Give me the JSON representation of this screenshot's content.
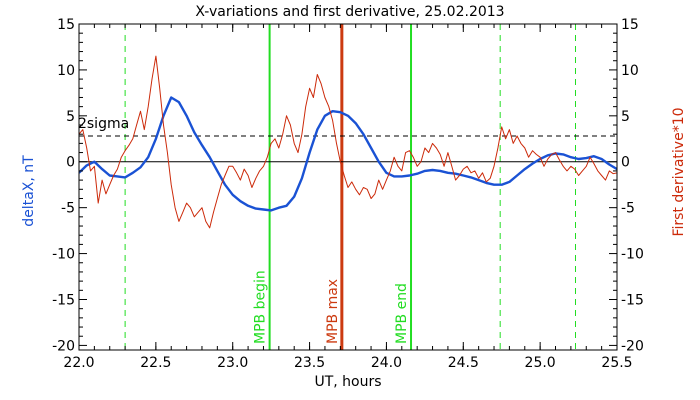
{
  "chart_data": {
    "type": "line",
    "title": "X-variations and first derivative, 25.02.2013",
    "xlabel": "UT, hours",
    "ylabel_left": "deltaX, nT",
    "ylabel_right": "First derivative*10",
    "xlim": [
      22.0,
      25.5
    ],
    "ylim": [
      -20.5,
      15
    ],
    "y2lim": [
      -20.5,
      15
    ],
    "xticks": [
      22.0,
      22.5,
      23.0,
      23.5,
      24.0,
      24.5,
      25.0,
      25.5
    ],
    "xtick_labels": [
      "22.0",
      "22.5",
      "23.0",
      "23.5",
      "24.0",
      "24.5",
      "25.0",
      "25.5"
    ],
    "yticks": [
      15,
      10,
      5,
      0,
      -5,
      -10,
      -15,
      -20
    ],
    "ytick_labels": [
      "15",
      "10",
      "5",
      "0",
      "-5",
      "-10",
      "-15",
      "-20"
    ],
    "y2ticks": [
      15,
      10,
      5,
      0,
      -5,
      -10,
      -15,
      -20
    ],
    "y2tick_labels": [
      "15",
      "10",
      "5",
      "0",
      "-5",
      "-10",
      "-15",
      "-20"
    ],
    "grid": false,
    "colors": {
      "deltaX": "#1a52d4",
      "derivative": "#cc2a0a",
      "mpb_lines": "#22dd22",
      "mpb_max": "#cc3a10",
      "right_axis_label": "#cc2a0a",
      "left_axis_label": "#1a52d4"
    },
    "series": [
      {
        "key": "deltaX",
        "x": [
          22.0,
          22.05,
          22.1,
          22.15,
          22.2,
          22.25,
          22.3,
          22.35,
          22.4,
          22.45,
          22.5,
          22.55,
          22.6,
          22.65,
          22.7,
          22.75,
          22.8,
          22.85,
          22.9,
          22.95,
          23.0,
          23.05,
          23.1,
          23.15,
          23.2,
          23.25,
          23.3,
          23.35,
          23.4,
          23.45,
          23.5,
          23.55,
          23.6,
          23.65,
          23.7,
          23.75,
          23.8,
          23.85,
          23.9,
          23.95,
          24.0,
          24.05,
          24.1,
          24.15,
          24.2,
          24.25,
          24.3,
          24.35,
          24.4,
          24.45,
          24.5,
          24.55,
          24.6,
          24.65,
          24.7,
          24.75,
          24.8,
          24.85,
          24.9,
          24.95,
          25.0,
          25.05,
          25.1,
          25.15,
          25.2,
          25.25,
          25.3,
          25.35,
          25.4,
          25.45,
          25.5
        ],
        "values": [
          -1.2,
          -0.4,
          0.0,
          -0.8,
          -1.5,
          -1.6,
          -1.7,
          -1.2,
          -0.6,
          0.5,
          2.5,
          5.0,
          7.0,
          6.5,
          5.0,
          3.2,
          1.8,
          0.5,
          -1.0,
          -2.5,
          -3.6,
          -4.3,
          -4.8,
          -5.1,
          -5.2,
          -5.3,
          -5.0,
          -4.8,
          -3.8,
          -1.8,
          1.0,
          3.5,
          5.0,
          5.5,
          5.4,
          5.0,
          4.2,
          3.0,
          1.5,
          0.0,
          -1.2,
          -1.6,
          -1.6,
          -1.5,
          -1.3,
          -1.0,
          -0.9,
          -1.0,
          -1.2,
          -1.3,
          -1.5,
          -1.7,
          -2.0,
          -2.3,
          -2.5,
          -2.5,
          -2.2,
          -1.5,
          -0.8,
          -0.2,
          0.3,
          0.7,
          0.9,
          0.8,
          0.5,
          0.3,
          0.4,
          0.6,
          0.3,
          -0.3,
          -0.8
        ]
      },
      {
        "key": "derivative",
        "x": [
          22.0,
          22.025,
          22.05,
          22.075,
          22.1,
          22.125,
          22.15,
          22.175,
          22.2,
          22.225,
          22.25,
          22.275,
          22.3,
          22.325,
          22.35,
          22.375,
          22.4,
          22.425,
          22.45,
          22.475,
          22.5,
          22.525,
          22.55,
          22.575,
          22.6,
          22.625,
          22.65,
          22.675,
          22.7,
          22.725,
          22.75,
          22.775,
          22.8,
          22.825,
          22.85,
          22.875,
          22.9,
          22.925,
          22.95,
          22.975,
          23.0,
          23.025,
          23.05,
          23.075,
          23.1,
          23.125,
          23.15,
          23.175,
          23.2,
          23.225,
          23.25,
          23.275,
          23.3,
          23.325,
          23.35,
          23.375,
          23.4,
          23.425,
          23.45,
          23.475,
          23.5,
          23.525,
          23.55,
          23.575,
          23.6,
          23.625,
          23.65,
          23.675,
          23.7,
          23.725,
          23.75,
          23.775,
          23.8,
          23.825,
          23.85,
          23.875,
          23.9,
          23.925,
          23.95,
          23.975,
          24.0,
          24.025,
          24.05,
          24.075,
          24.1,
          24.125,
          24.15,
          24.175,
          24.2,
          24.225,
          24.25,
          24.275,
          24.3,
          24.325,
          24.35,
          24.375,
          24.4,
          24.425,
          24.45,
          24.475,
          24.5,
          24.525,
          24.55,
          24.575,
          24.6,
          24.625,
          24.65,
          24.675,
          24.7,
          24.725,
          24.75,
          24.775,
          24.8,
          24.825,
          24.85,
          24.875,
          24.9,
          24.925,
          24.95,
          24.975,
          25.0,
          25.025,
          25.05,
          25.075,
          25.1,
          25.125,
          25.15,
          25.175,
          25.2,
          25.225,
          25.25,
          25.275,
          25.3,
          25.325,
          25.35,
          25.375,
          25.4,
          25.425,
          25.45,
          25.475,
          25.5
        ],
        "values": [
          3.0,
          3.5,
          1.5,
          -1.0,
          -0.5,
          -4.5,
          -2.0,
          -3.5,
          -2.5,
          -1.5,
          -0.8,
          0.5,
          1.2,
          1.8,
          2.5,
          4.0,
          5.5,
          3.5,
          6.0,
          9.0,
          11.5,
          8.0,
          4.0,
          1.0,
          -2.5,
          -5.0,
          -6.5,
          -5.5,
          -4.5,
          -5.0,
          -6.0,
          -5.5,
          -5.0,
          -6.5,
          -7.2,
          -5.5,
          -4.0,
          -2.5,
          -1.5,
          -0.5,
          -0.5,
          -1.2,
          -2.0,
          -0.8,
          -1.5,
          -2.8,
          -1.8,
          -1.0,
          -0.5,
          0.5,
          2.0,
          2.5,
          1.5,
          3.0,
          5.0,
          4.0,
          2.0,
          1.0,
          3.0,
          6.0,
          8.0,
          7.0,
          9.5,
          8.5,
          7.0,
          6.0,
          4.5,
          2.0,
          0.0,
          -1.5,
          -2.8,
          -2.2,
          -3.0,
          -3.6,
          -2.8,
          -3.0,
          -4.0,
          -3.5,
          -2.0,
          -3.0,
          -2.0,
          -1.0,
          0.5,
          -0.5,
          -1.0,
          1.0,
          1.2,
          0.5,
          -0.5,
          0.0,
          1.5,
          1.0,
          2.0,
          1.5,
          0.8,
          -0.5,
          1.0,
          -0.5,
          -2.0,
          -1.5,
          -0.8,
          -0.5,
          -1.2,
          -1.0,
          -1.8,
          -1.2,
          -2.2,
          -1.8,
          -0.5,
          1.5,
          3.8,
          2.5,
          3.5,
          2.0,
          2.8,
          2.0,
          1.5,
          0.5,
          1.2,
          0.8,
          0.5,
          -0.5,
          0.3,
          0.8,
          1.0,
          0.2,
          -0.5,
          -1.0,
          -0.5,
          -0.8,
          -1.5,
          -1.0,
          -0.5,
          0.5,
          -0.2,
          -1.0,
          -1.5,
          -2.0,
          -1.0,
          -1.3,
          -1.2
        ]
      }
    ],
    "reference_lines": {
      "zero_value": 0,
      "twosigma_value": 2.8,
      "twosigma_label": "2sigma"
    },
    "vertical_markers": [
      {
        "x": 22.3,
        "style": "dashed",
        "color": "#22dd22"
      },
      {
        "x": 23.24,
        "style": "solid",
        "color": "#22dd22",
        "label": "MPB begin"
      },
      {
        "x": 23.71,
        "style": "solid",
        "color": "#cc3a10",
        "label": "MPB max"
      },
      {
        "x": 24.16,
        "style": "solid",
        "color": "#22dd22",
        "label": "MPB end"
      },
      {
        "x": 24.74,
        "style": "dashed",
        "color": "#22dd22"
      },
      {
        "x": 25.23,
        "style": "dashed",
        "color": "#22dd22"
      }
    ]
  }
}
